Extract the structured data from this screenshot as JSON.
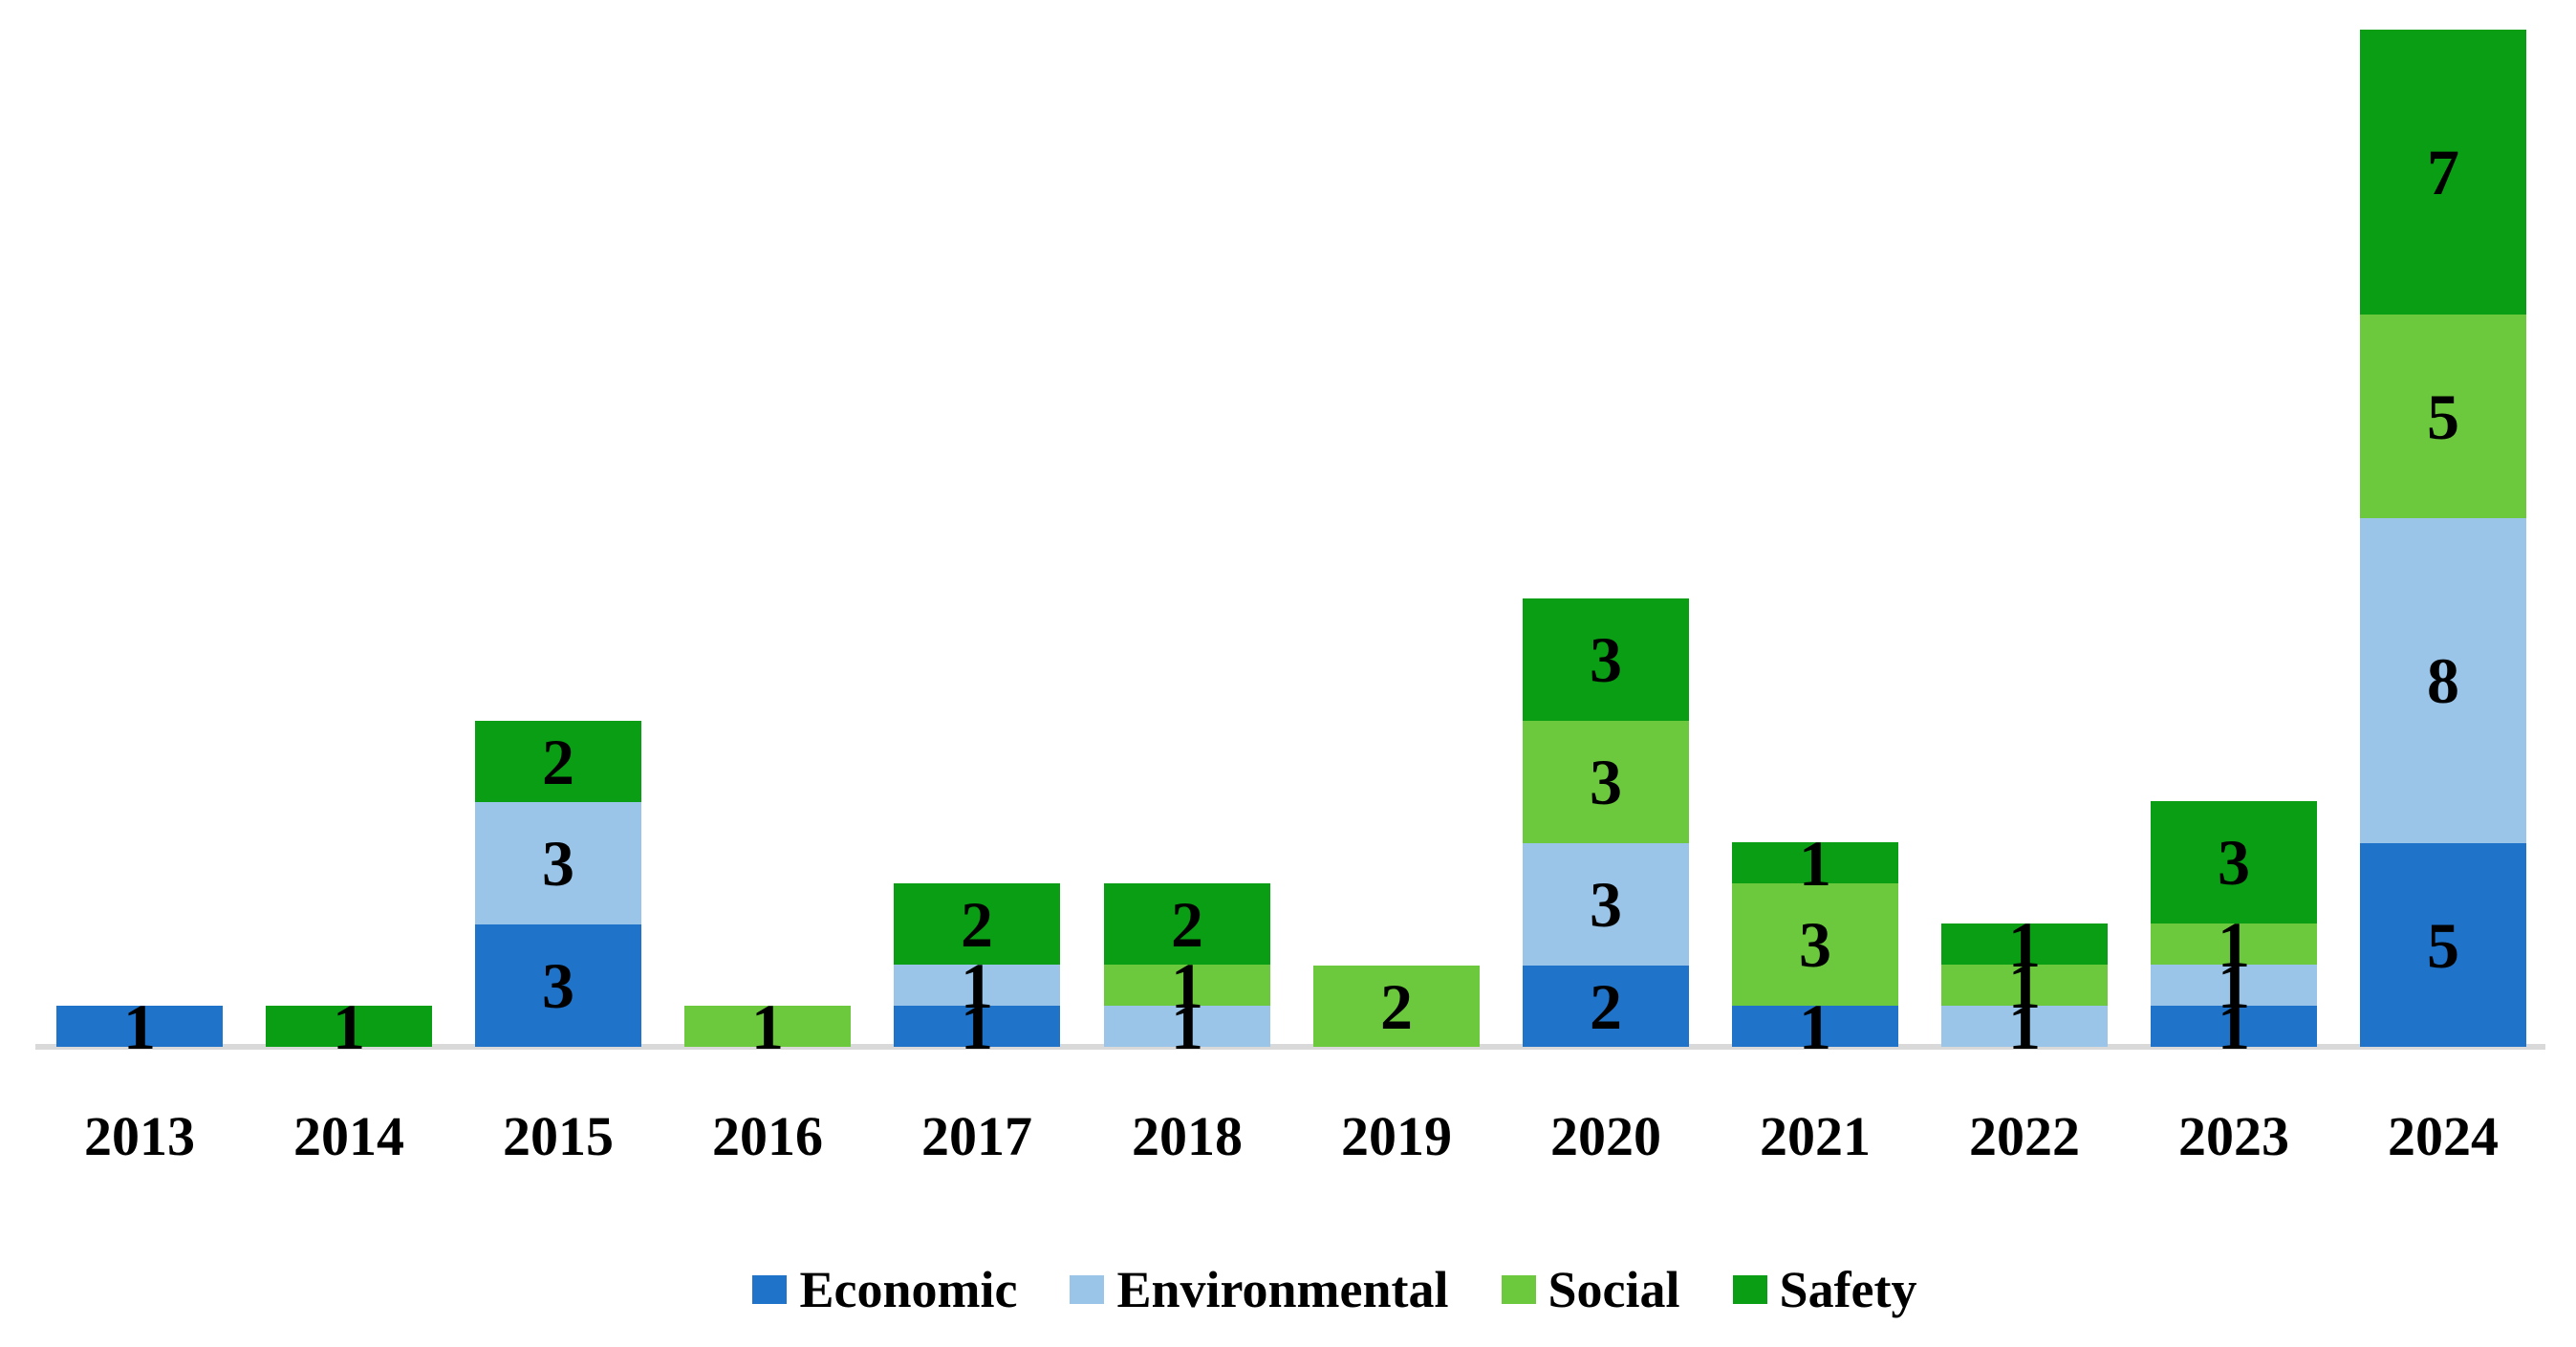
{
  "chart_data": {
    "type": "bar",
    "stacked": true,
    "title": "",
    "xlabel": "",
    "ylabel": "",
    "categories": [
      "2013",
      "2014",
      "2015",
      "2016",
      "2017",
      "2018",
      "2019",
      "2020",
      "2021",
      "2022",
      "2023",
      "2024"
    ],
    "series": [
      {
        "name": "Economic",
        "color": "#1f73c8",
        "values": [
          1,
          0,
          3,
          0,
          1,
          0,
          0,
          2,
          1,
          0,
          1,
          5
        ]
      },
      {
        "name": "Environmental",
        "color": "#9ac5e8",
        "values": [
          0,
          0,
          3,
          0,
          1,
          1,
          0,
          3,
          0,
          1,
          1,
          8
        ]
      },
      {
        "name": "Social",
        "color": "#6cc93e",
        "values": [
          0,
          0,
          0,
          1,
          0,
          1,
          2,
          3,
          3,
          1,
          1,
          5
        ]
      },
      {
        "name": "Safety",
        "color": "#0a9e14",
        "values": [
          0,
          1,
          2,
          0,
          2,
          2,
          0,
          3,
          1,
          1,
          3,
          7
        ]
      }
    ],
    "totals": [
      1,
      1,
      8,
      1,
      4,
      4,
      2,
      11,
      5,
      3,
      6,
      25
    ],
    "value_labels_visible": true,
    "label_color": "#000000",
    "axis_line_color": "#d9d9d9",
    "background": "#ffffff",
    "ylim": [
      0,
      25
    ],
    "gridlines": false,
    "legend_position": "bottom"
  },
  "legend": {
    "items": [
      {
        "label": "Economic",
        "color": "#1f73c8"
      },
      {
        "label": "Environmental",
        "color": "#9ac5e8"
      },
      {
        "label": "Social",
        "color": "#6cc93e"
      },
      {
        "label": "Safety",
        "color": "#0a9e14"
      }
    ]
  }
}
